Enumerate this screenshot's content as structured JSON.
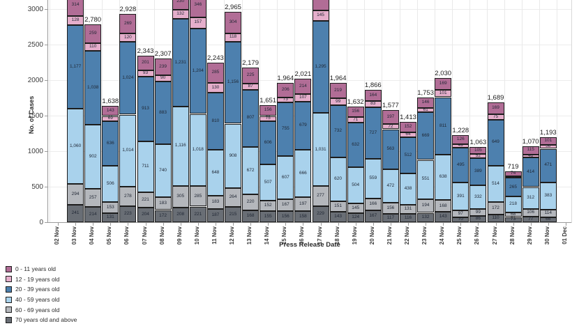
{
  "chart": {
    "y_axis": {
      "label": "No. of Cases",
      "ticks": [
        {
          "text": "0",
          "value": 0
        },
        {
          "text": "500",
          "value": 500
        },
        {
          "text": "1000",
          "value": 1000
        },
        {
          "text": "1500",
          "value": 1500
        },
        {
          "text": "2000",
          "value": 2000
        },
        {
          "text": "2500",
          "value": 2500
        },
        {
          "text": "3000",
          "value": 3000
        }
      ]
    },
    "x_axis": {
      "label": "Press Release Date"
    },
    "legend": [
      {
        "label": "0 - 11 years old",
        "color": "#b16d96"
      },
      {
        "label": "12 - 19 years old",
        "color": "#e5aecb"
      },
      {
        "label": "20 - 39 years old",
        "color": "#4d80ae"
      },
      {
        "label": "40 - 59 years old",
        "color": "#a9d2ec"
      },
      {
        "label": "60 - 69 years old",
        "color": "#b4b7bc"
      },
      {
        "label": "70 years old and above",
        "color": "#696e75"
      }
    ]
  },
  "chart_data": {
    "type": "bar",
    "stacked": true,
    "grid": true,
    "legend_position": "bottom-left",
    "ylim": [
      0,
      3140
    ],
    "total_label_max_shown": 3000,
    "categories": [
      "02 Nov",
      "03 Nov",
      "04 Nov",
      "05 Nov",
      "06 Nov",
      "07 Nov",
      "08 Nov",
      "09 Nov",
      "10 Nov",
      "11 Nov",
      "12 Nov",
      "13 Nov",
      "14 Nov",
      "15 Nov",
      "16 Nov",
      "17 Nov",
      "18 Nov",
      "19 Nov",
      "20 Nov",
      "21 Nov",
      "22 Nov",
      "23 Nov",
      "24 Nov",
      "25 Nov",
      "26 Nov",
      "27 Nov",
      "28 Nov",
      "29 Nov",
      "30 Nov",
      "01 Dec"
    ],
    "series": [
      {
        "name": "70 years old and above",
        "color": "#696e75",
        "values": [
          null,
          241,
          214,
          131,
          223,
          204,
          172,
          208,
          221,
          187,
          215,
          168,
          155,
          156,
          158,
          229,
          143,
          124,
          167,
          117,
          116,
          132,
          143,
          70,
          86,
          110,
          73,
          77,
          66,
          null
        ]
      },
      {
        "name": "60 - 69 years old",
        "color": "#b4b7bc",
        "values": [
          null,
          294,
          257,
          153,
          278,
          221,
          183,
          305,
          285,
          183,
          264,
          220,
          152,
          167,
          197,
          277,
          151,
          145,
          166,
          156,
          131,
          194,
          168,
          97,
          99,
          172,
          68,
          106,
          114,
          null
        ]
      },
      {
        "name": "40 - 59 years old",
        "color": "#a9d2ec",
        "values": [
          null,
          1060,
          902,
          506,
          1014,
          711,
          740,
          1116,
          1018,
          648,
          908,
          672,
          507,
          607,
          666,
          1031,
          620,
          504,
          559,
          472,
          438,
          551,
          638,
          391,
          332,
          514,
          218,
          312,
          383,
          null
        ]
      },
      {
        "name": "20 - 39 years old",
        "color": "#4d80ae",
        "values": [
          null,
          1177,
          1038,
          636,
          1024,
          913,
          883,
          1231,
          1204,
          810,
          1156,
          807,
          606,
          755,
          679,
          1295,
          732,
          632,
          727,
          563,
          512,
          669,
          811,
          495,
          389,
          649,
          265,
          414,
          471,
          null
        ]
      },
      {
        "name": "12 - 19 years old",
        "color": "#e5aecb",
        "values": [
          null,
          128,
          110,
          69,
          120,
          93,
          90,
          132,
          157,
          130,
          118,
          87,
          75,
          73,
          107,
          145,
          99,
          71,
          83,
          72,
          64,
          61,
          101,
          49,
          52,
          75,
          21,
          46,
          58,
          null
        ]
      },
      {
        "name": "0 - 11 years old",
        "color": "#b16d96",
        "values": [
          null,
          314,
          259,
          143,
          269,
          201,
          239,
          230,
          346,
          285,
          304,
          225,
          156,
          206,
          214,
          343,
          219,
          156,
          164,
          197,
          152,
          146,
          169,
          126,
          105,
          169,
          74,
          115,
          101,
          null
        ]
      }
    ]
  }
}
